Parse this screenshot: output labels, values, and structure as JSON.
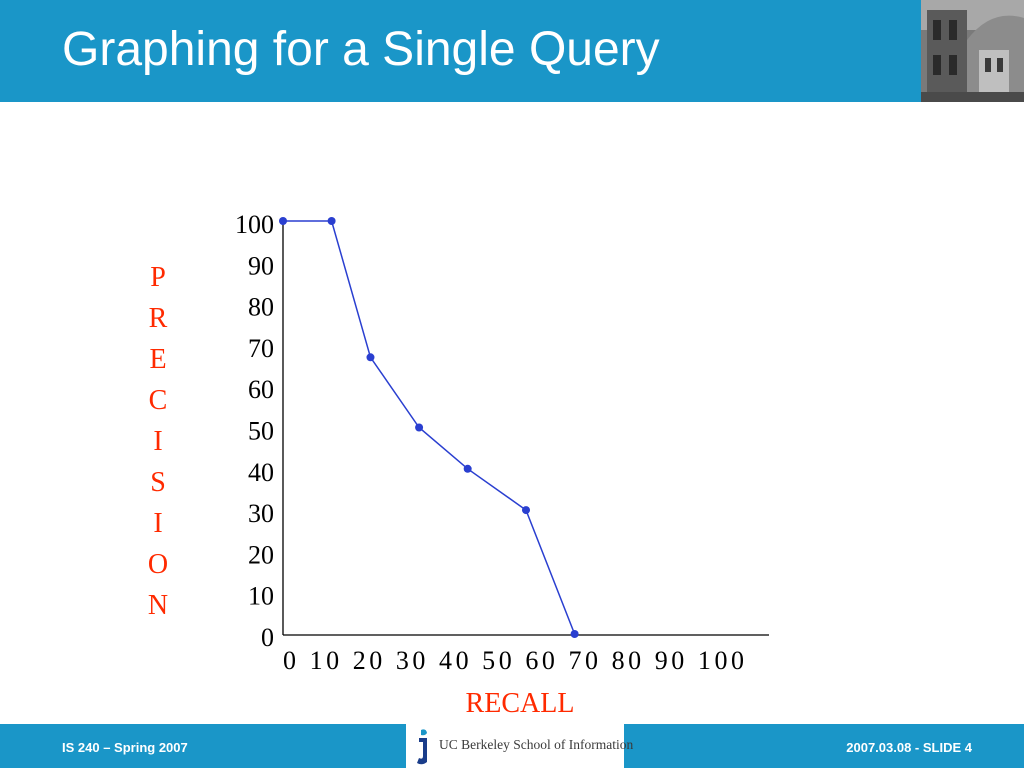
{
  "slide": {
    "title": "Graphing for a Single Query"
  },
  "footer": {
    "left_text": "IS 240 – Spring 2007",
    "logo_text": "UC Berkeley School of Information",
    "right_text": "2007.03.08 - SLIDE 4"
  },
  "colors": {
    "header_blue": "#1a96c8",
    "axis_label_red": "#ff2a00",
    "series_blue": "#2a3fd0"
  },
  "chart_data": {
    "type": "line",
    "xlabel": "RECALL",
    "ylabel": "PRECISION",
    "xlim": [
      0,
      100
    ],
    "ylim": [
      0,
      100
    ],
    "x_ticks": [
      "0",
      "10",
      "20",
      "30",
      "40",
      "50",
      "60",
      "70",
      "80",
      "90",
      "100"
    ],
    "y_ticks": [
      "100",
      "90",
      "80",
      "70",
      "60",
      "50",
      "40",
      "30",
      "20",
      "10",
      "0"
    ],
    "grid": false,
    "series": [
      {
        "points": [
          {
            "x": 0,
            "y": 100
          },
          {
            "x": 10,
            "y": 100
          },
          {
            "x": 18,
            "y": 67
          },
          {
            "x": 28,
            "y": 50
          },
          {
            "x": 38,
            "y": 40
          },
          {
            "x": 50,
            "y": 30
          },
          {
            "x": 60,
            "y": 0
          }
        ]
      }
    ]
  }
}
